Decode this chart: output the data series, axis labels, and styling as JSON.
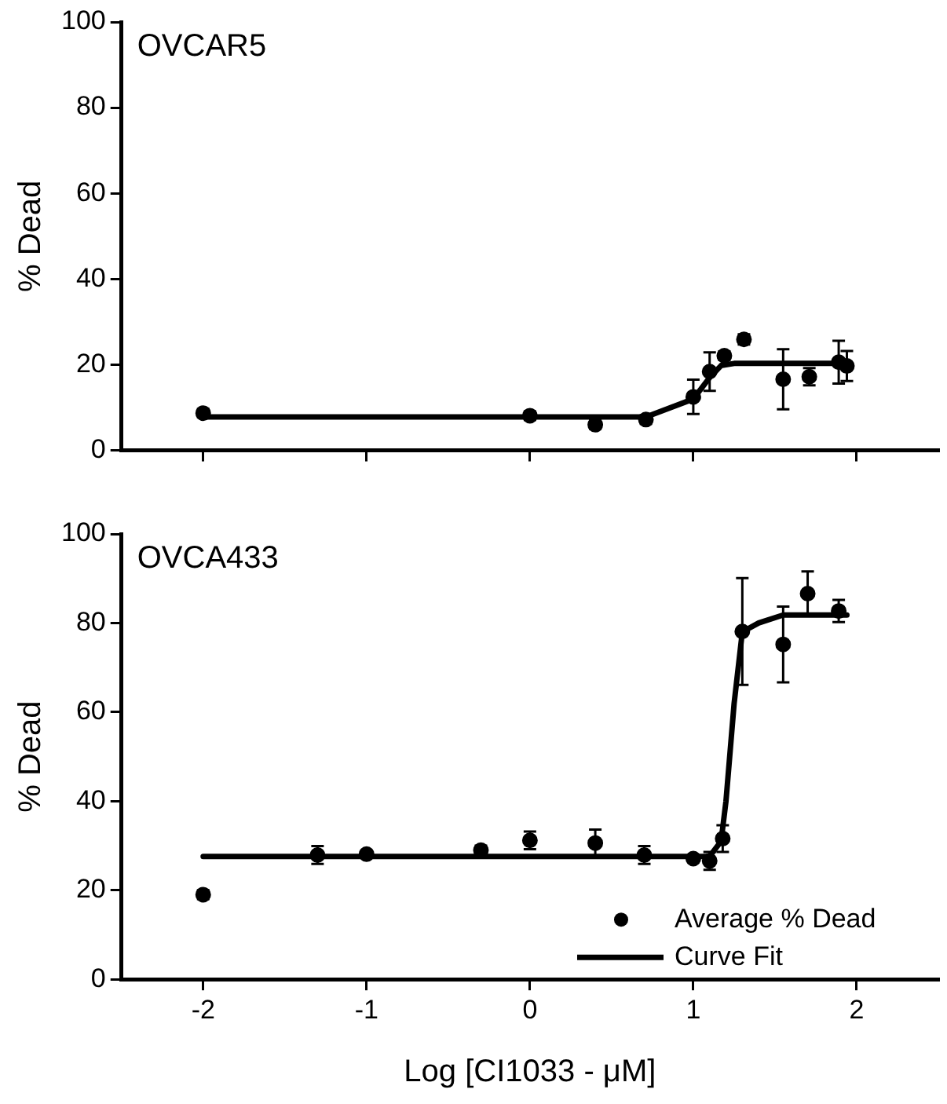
{
  "chart_data": [
    {
      "type": "scatter",
      "title": "OVCAR5",
      "ylabel": "% Dead",
      "xlim": [
        -2.5,
        2.5
      ],
      "xticks": [
        -2,
        -1,
        0,
        1,
        2
      ],
      "ylim": [
        0,
        100
      ],
      "yticks": [
        0,
        20,
        40,
        60,
        80,
        100
      ],
      "tick_labels": "y",
      "grid": false,
      "legend": false,
      "series": [
        {
          "type": "scatter",
          "marker": "circle",
          "color": "#000000",
          "x": [
            -2,
            0,
            0.4,
            0.71,
            1.0,
            1.1,
            1.19,
            1.31,
            1.55,
            1.71,
            1.89,
            1.94
          ],
          "values": [
            8.7,
            8.1,
            6.0,
            7.2,
            12.5,
            18.4,
            22.1,
            25.9,
            16.6,
            17.2,
            20.6,
            19.7
          ],
          "errors": [
            1,
            1,
            1,
            1,
            4,
            4.5,
            1,
            1.2,
            7,
            2,
            5,
            3.5
          ]
        },
        {
          "type": "line",
          "marker": "none",
          "line_style": "solid",
          "color": "#000000",
          "x": [
            -2,
            0.71,
            1.0,
            1.1,
            1.17,
            1.25,
            1.94
          ],
          "values": [
            7.8,
            7.8,
            12,
            17,
            19.8,
            20.3,
            20.3
          ]
        }
      ]
    },
    {
      "type": "scatter",
      "title": "OVCA433",
      "xlabel": "Log [CI1033 - μM]",
      "ylabel": "% Dead",
      "xlim": [
        -2.5,
        2.5
      ],
      "xticks": [
        -2,
        -1,
        0,
        1,
        2
      ],
      "ylim": [
        0,
        100
      ],
      "yticks": [
        0,
        20,
        40,
        60,
        80,
        100
      ],
      "grid": false,
      "legend": "bottom right",
      "series": [
        {
          "type": "scatter",
          "marker": "circle",
          "name": "Average % Dead",
          "color": "#000000",
          "x": [
            -2,
            -1.3,
            -1.0,
            -0.3,
            0,
            0.4,
            0.7,
            1.0,
            1.1,
            1.18,
            1.3,
            1.55,
            1.7,
            1.89
          ],
          "values": [
            19.0,
            27.9,
            28.1,
            29.0,
            31.2,
            30.6,
            27.9,
            27.1,
            26.6,
            31.6,
            78.1,
            75.2,
            86.6,
            82.7
          ],
          "errors": [
            1,
            2,
            0.8,
            1,
            2,
            3,
            2,
            0.8,
            2,
            3,
            12,
            8.5,
            5,
            2.5
          ]
        },
        {
          "type": "line",
          "marker": "none",
          "line_style": "solid",
          "name": "Curve Fit",
          "color": "#000000",
          "x": [
            -2,
            1.1,
            1.17,
            1.2,
            1.25,
            1.3,
            1.4,
            1.55,
            1.94
          ],
          "values": [
            27.6,
            27.6,
            31,
            40,
            62,
            78,
            80,
            81.8,
            81.8
          ]
        }
      ]
    }
  ]
}
